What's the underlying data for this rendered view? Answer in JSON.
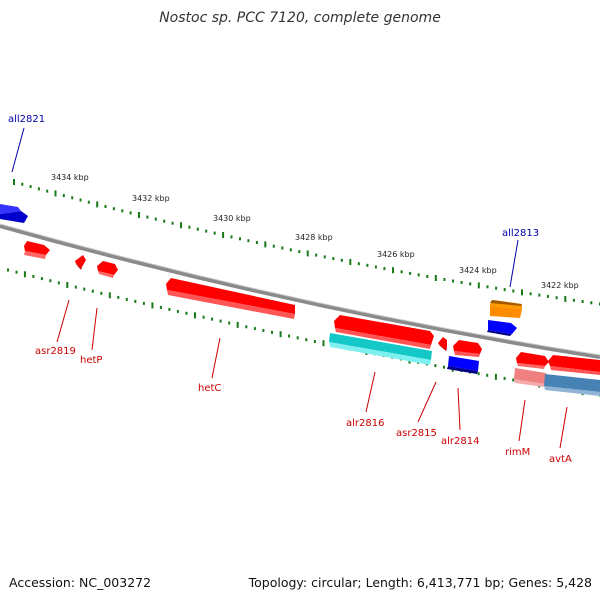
{
  "title": "Nostoc sp. PCC 7120, complete genome",
  "footer": {
    "accession": "Accession: NC_003272",
    "summary": "Topology: circular; Length: 6,413,771 bp; Genes: 5,428"
  },
  "colors": {
    "forward_gene": "#ff0000",
    "reverse_gene": "#0000ff",
    "backbone": "#808080",
    "tick": "#1a7a1a",
    "forward_label": "#cc0000",
    "reverse_label": "#0000aa",
    "rna_cyan": "#14c8c8",
    "orange_gene": "#ff8c00",
    "steelblue_gene": "#4682b4",
    "salmon_gene": "#f08080"
  },
  "scale_labels": [
    "3434 kbp",
    "3432 kbp",
    "3430 kbp",
    "3428 kbp",
    "3426 kbp",
    "3424 kbp",
    "3422 kbp"
  ],
  "gene_labels": {
    "all2821": "all2821",
    "all2813": "all2813",
    "asr2819": "asr2819",
    "hetP": "hetP",
    "hetC": "hetC",
    "alr2816": "alr2816",
    "asr2815": "asr2815",
    "alr2814": "alr2814",
    "rimM": "rimM",
    "avtA": "avtA"
  }
}
